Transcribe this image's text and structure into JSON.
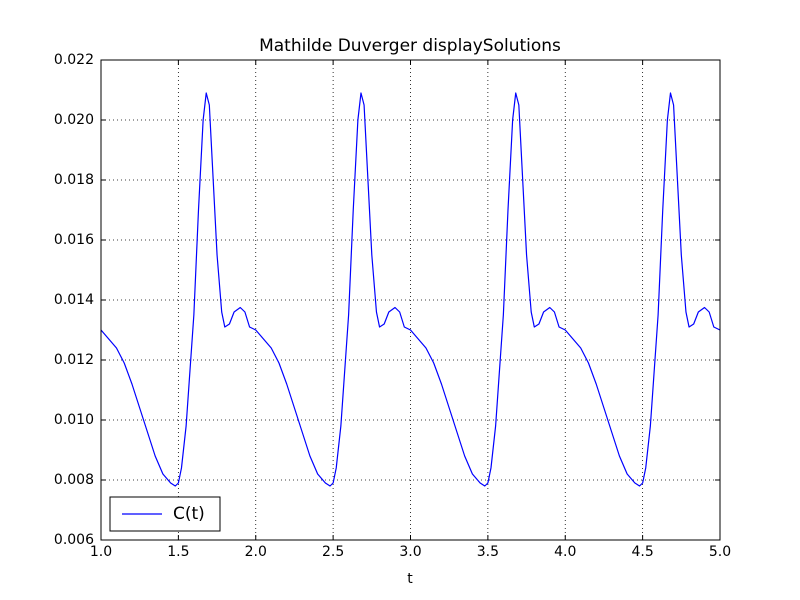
{
  "chart_data": {
    "type": "line",
    "title": "Mathilde Duverger displaySolutions",
    "x_label": "t",
    "x": [
      1.0,
      1.05,
      1.1,
      1.15,
      1.2,
      1.25,
      1.3,
      1.35,
      1.4,
      1.45,
      1.48,
      1.5,
      1.52,
      1.55,
      1.6,
      1.63,
      1.66,
      1.68,
      1.7,
      1.72,
      1.75,
      1.78,
      1.8,
      1.83,
      1.86,
      1.9,
      1.93,
      1.96,
      2.0,
      2.05,
      2.1,
      2.15,
      2.2,
      2.25,
      2.3,
      2.35,
      2.4,
      2.45,
      2.48,
      2.5,
      2.52,
      2.55,
      2.6,
      2.63,
      2.66,
      2.68,
      2.7,
      2.72,
      2.75,
      2.78,
      2.8,
      2.83,
      2.86,
      2.9,
      2.93,
      2.96,
      3.0,
      3.05,
      3.1,
      3.15,
      3.2,
      3.25,
      3.3,
      3.35,
      3.4,
      3.45,
      3.48,
      3.5,
      3.52,
      3.55,
      3.6,
      3.63,
      3.66,
      3.68,
      3.7,
      3.72,
      3.75,
      3.78,
      3.8,
      3.83,
      3.86,
      3.9,
      3.93,
      3.96,
      4.0,
      4.05,
      4.1,
      4.15,
      4.2,
      4.25,
      4.3,
      4.35,
      4.4,
      4.45,
      4.48,
      4.5,
      4.52,
      4.55,
      4.6,
      4.63,
      4.66,
      4.68,
      4.7,
      4.72,
      4.75,
      4.78,
      4.8,
      4.83,
      4.86,
      4.9,
      4.93,
      4.96,
      5.0
    ],
    "series": [
      {
        "name": "C(t)",
        "color": "#0000ff",
        "values": [
          0.013,
          0.0127,
          0.0124,
          0.0119,
          0.0112,
          0.0104,
          0.0096,
          0.0088,
          0.0082,
          0.0079,
          0.0078,
          0.0079,
          0.0084,
          0.0098,
          0.0135,
          0.017,
          0.02,
          0.0209,
          0.0205,
          0.0185,
          0.0155,
          0.0136,
          0.0131,
          0.0132,
          0.0136,
          0.01375,
          0.0136,
          0.0131,
          0.013,
          0.0127,
          0.0124,
          0.0119,
          0.0112,
          0.0104,
          0.0096,
          0.0088,
          0.0082,
          0.0079,
          0.0078,
          0.0079,
          0.0084,
          0.0098,
          0.0135,
          0.017,
          0.02,
          0.0209,
          0.0205,
          0.0185,
          0.0155,
          0.0136,
          0.0131,
          0.0132,
          0.0136,
          0.01375,
          0.0136,
          0.0131,
          0.013,
          0.0127,
          0.0124,
          0.0119,
          0.0112,
          0.0104,
          0.0096,
          0.0088,
          0.0082,
          0.0079,
          0.0078,
          0.0079,
          0.0084,
          0.0098,
          0.0135,
          0.017,
          0.02,
          0.0209,
          0.0205,
          0.0185,
          0.0155,
          0.0136,
          0.0131,
          0.0132,
          0.0136,
          0.01375,
          0.0136,
          0.0131,
          0.013,
          0.0127,
          0.0124,
          0.0119,
          0.0112,
          0.0104,
          0.0096,
          0.0088,
          0.0082,
          0.0079,
          0.0078,
          0.0079,
          0.0084,
          0.0098,
          0.0135,
          0.017,
          0.02,
          0.0209,
          0.0205,
          0.0185,
          0.0155,
          0.0136,
          0.0131,
          0.0132,
          0.0136,
          0.01375,
          0.0136,
          0.0131,
          0.013
        ]
      }
    ],
    "xlim": [
      1.0,
      5.0
    ],
    "xticks": [
      {
        "value": 1.0,
        "label": "1.0"
      },
      1.5,
      {
        "value": 2.0,
        "label": "2.0"
      },
      2.5,
      {
        "value": 3.0,
        "label": "3.0"
      },
      3.5,
      {
        "value": 4.0,
        "label": "4.0"
      },
      4.5,
      {
        "value": 5.0,
        "label": "5.0"
      }
    ],
    "ylim": [
      0.006,
      0.022
    ],
    "yticks": [
      0.006,
      0.008,
      {
        "value": 0.01,
        "label": "0.010"
      },
      0.012,
      0.014,
      0.016,
      0.018,
      {
        "value": 0.02,
        "label": "0.020"
      },
      0.022
    ],
    "grid": true,
    "legend": "lower left"
  }
}
